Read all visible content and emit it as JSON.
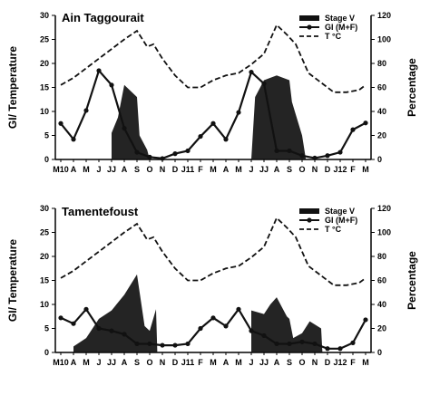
{
  "chart_data": [
    {
      "type": "line",
      "title": "Ain Taggourait",
      "ylabel": "GI/ Temperature",
      "y2label": "Percentage",
      "ylim": [
        0,
        30
      ],
      "y2lim": [
        0,
        120
      ],
      "yticks": [
        "0",
        "5",
        "10",
        "15",
        "20",
        "25",
        "30"
      ],
      "y2ticks": [
        "0",
        "20",
        "40",
        "60",
        "80",
        "100",
        "120"
      ],
      "categories": [
        "M10",
        "A",
        "M",
        "J",
        "JJ",
        "A",
        "S",
        "O",
        "N",
        "D",
        "J11",
        "F",
        "M",
        "A",
        "M",
        "J",
        "JJ",
        "A",
        "S",
        "O",
        "N",
        "D",
        "J12",
        "F",
        "M"
      ],
      "legend": {
        "position": "top-right",
        "entries": [
          "Stage V",
          "GI (M+F)",
          "T °C"
        ]
      },
      "grid": false,
      "series": [
        {
          "name": "Stage V",
          "kind": "area",
          "axis": "right",
          "color": "#111111",
          "points": [
            [
              4,
              22
            ],
            [
              4.5,
              35
            ],
            [
              5,
              62
            ],
            [
              6,
              52
            ],
            [
              6.2,
              20
            ],
            [
              6.8,
              8
            ],
            [
              7,
              0
            ],
            [
              15,
              0
            ],
            [
              15.3,
              52
            ],
            [
              16,
              66
            ],
            [
              17,
              70
            ],
            [
              18,
              66
            ],
            [
              18.2,
              48
            ],
            [
              19,
              20
            ],
            [
              19.3,
              0
            ]
          ]
        },
        {
          "name": "GI (M+F)",
          "kind": "line-marker",
          "axis": "left",
          "color": "#111111",
          "values": [
            7.5,
            4.2,
            10.2,
            18.5,
            15.5,
            6.5,
            1.5,
            0.5,
            0.2,
            1.2,
            1.8,
            4.8,
            7.5,
            4.2,
            9.8,
            18.2,
            15.8,
            1.8,
            1.8,
            0.8,
            0.3,
            0.8,
            1.5,
            6.2,
            7.6
          ]
        },
        {
          "name": "T °C",
          "kind": "dashed-line",
          "axis": "left",
          "color": "#111111",
          "values": [
            15.5,
            17,
            19,
            21,
            23,
            25,
            26.8,
            23.5,
            24,
            21,
            17.5,
            15,
            15,
            16.5,
            17.5,
            18,
            19.8,
            22,
            28,
            26,
            24,
            18,
            16,
            14,
            14,
            14.5,
            15.5
          ],
          "x": [
            0,
            1,
            2,
            3,
            4,
            5,
            6,
            6.8,
            7.3,
            8,
            9,
            10,
            11,
            12,
            13,
            14,
            15,
            16,
            17,
            17.8,
            18.5,
            19.5,
            20.5,
            21.5,
            22.5,
            23.5,
            24
          ]
        }
      ]
    },
    {
      "type": "line",
      "title": "Tamentefoust",
      "ylabel": "GI/ Temperature",
      "y2label": "Percentage",
      "ylim": [
        0,
        30
      ],
      "y2lim": [
        0,
        120
      ],
      "yticks": [
        "0",
        "5",
        "10",
        "15",
        "20",
        "25",
        "30"
      ],
      "y2ticks": [
        "0",
        "20",
        "40",
        "60",
        "80",
        "100",
        "120"
      ],
      "categories": [
        "M10",
        "A",
        "M",
        "J",
        "JJ",
        "A",
        "S",
        "O",
        "N",
        "D",
        "J11",
        "F",
        "M",
        "A",
        "M",
        "J",
        "JJ",
        "A",
        "S",
        "O",
        "N",
        "D",
        "J12",
        "F",
        "M"
      ],
      "legend": {
        "position": "top-right",
        "entries": [
          "Stage V",
          "GI (M+F)",
          "T °C"
        ]
      },
      "grid": false,
      "series": [
        {
          "name": "Stage V",
          "kind": "area",
          "axis": "right",
          "color": "#111111",
          "points": [
            [
              1,
              5
            ],
            [
              2,
              12
            ],
            [
              3,
              28
            ],
            [
              4,
              35
            ],
            [
              5,
              48
            ],
            [
              6,
              65
            ],
            [
              6.6,
              22
            ],
            [
              7,
              18
            ],
            [
              7.5,
              36
            ],
            [
              7.6,
              0
            ],
            [
              15,
              0
            ],
            [
              15,
              35
            ],
            [
              16,
              32
            ],
            [
              16.5,
              40
            ],
            [
              17,
              46
            ],
            [
              17.8,
              30
            ],
            [
              18,
              28
            ],
            [
              18.3,
              12
            ],
            [
              19,
              16
            ],
            [
              19.6,
              26
            ],
            [
              20.5,
              20
            ],
            [
              20.6,
              0
            ]
          ]
        },
        {
          "name": "GI (M+F)",
          "kind": "line-marker",
          "axis": "left",
          "color": "#111111",
          "values": [
            7.2,
            6,
            9,
            5,
            4.5,
            3.8,
            1.8,
            1.8,
            1.5,
            1.5,
            1.8,
            5,
            7.2,
            5.5,
            9,
            4.5,
            3.5,
            1.8,
            1.8,
            2.2,
            1.8,
            0.8,
            0.8,
            2,
            6.8
          ]
        },
        {
          "name": "T °C",
          "kind": "dashed-line",
          "axis": "left",
          "color": "#111111",
          "values": [
            15.5,
            17,
            19,
            21,
            23,
            25,
            26.8,
            23.5,
            24,
            21,
            17.5,
            15,
            15,
            16.5,
            17.5,
            18,
            19.8,
            22,
            28,
            26,
            24,
            18,
            16,
            14,
            14,
            14.5,
            15.5
          ],
          "x": [
            0,
            1,
            2,
            3,
            4,
            5,
            6,
            6.8,
            7.3,
            8,
            9,
            10,
            11,
            12,
            13,
            14,
            15,
            16,
            17,
            17.8,
            18.5,
            19.5,
            20.5,
            21.5,
            22.5,
            23.5,
            24
          ]
        }
      ]
    }
  ]
}
